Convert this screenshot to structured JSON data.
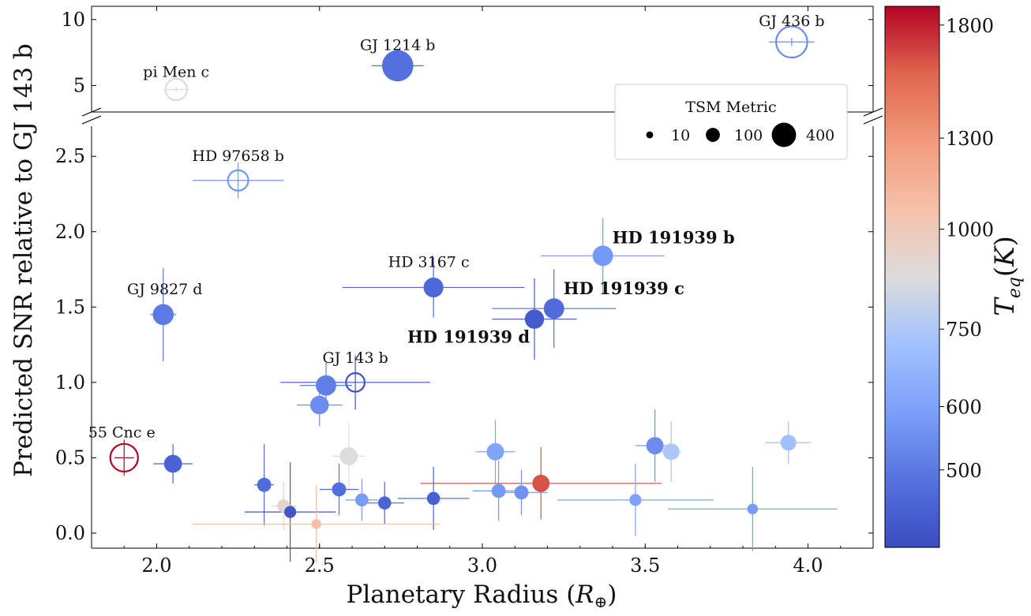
{
  "chart_data": {
    "type": "scatter",
    "xlabel": "Planetary Radius (R⊕)",
    "ylabel": "Predicted SNR relative to GJ 143 b",
    "xlim": [
      1.8,
      4.2
    ],
    "ylim_lower": [
      -0.1,
      2.7
    ],
    "ylim_upper": [
      3,
      11
    ],
    "x_ticks": [
      "2.0",
      "2.5",
      "3.0",
      "3.5",
      "4.0"
    ],
    "y_ticks_lower": [
      "0.0",
      "0.5",
      "1.0",
      "1.5",
      "2.0",
      "2.5"
    ],
    "y_ticks_upper": [
      "5",
      "10"
    ],
    "broken_y_axis": true,
    "color_scale": "coolwarm",
    "colorbar": {
      "label": "T_eq(K)",
      "min": 400,
      "max": 1900,
      "ticks": [
        "500",
        "600",
        "750",
        "1000",
        "1300",
        "1800"
      ]
    },
    "legend": {
      "title": "TSM Metric",
      "placement": "upper-right",
      "entries": [
        {
          "label": "10",
          "tsm": 10
        },
        {
          "label": "100",
          "tsm": 100
        },
        {
          "label": "400",
          "tsm": 400
        }
      ]
    },
    "points": [
      {
        "label": "GJ 436 b",
        "x": 3.95,
        "y": 8.3,
        "xerr": 0.07,
        "yerr": 0.3,
        "teq": 690,
        "tsm": 400,
        "hollow": true,
        "panel": "upper"
      },
      {
        "label": "GJ 1214 b",
        "x": 2.74,
        "y": 6.5,
        "xerr": 0.08,
        "yerr": 0.3,
        "teq": 580,
        "tsm": 400,
        "hollow": false,
        "panel": "upper"
      },
      {
        "label": "pi Men c",
        "x": 2.06,
        "y": 4.7,
        "xerr": 0.04,
        "yerr": 0.2,
        "teq": 1150,
        "tsm": 160,
        "hollow": true,
        "panel": "upper"
      },
      {
        "label": "HD 97658 b",
        "x": 2.25,
        "y": 2.34,
        "xerr": 0.14,
        "yerr": 0.12,
        "teq": 740,
        "tsm": 140,
        "hollow": true,
        "bold": false
      },
      {
        "label": "HD 191939 b",
        "x": 3.37,
        "y": 1.84,
        "xerr": 0.19,
        "yerr": 0.25,
        "teq": 750,
        "tsm": 140,
        "hollow": false,
        "bold": true
      },
      {
        "label": "HD 3167 c",
        "x": 2.85,
        "y": 1.63,
        "xerr": 0.28,
        "yerr": 0.2,
        "teq": 540,
        "tsm": 130,
        "hollow": false,
        "bold": false
      },
      {
        "label": "HD 191939 c",
        "x": 3.22,
        "y": 1.49,
        "xerr": 0.19,
        "yerr": 0.26,
        "teq": 560,
        "tsm": 140,
        "hollow": false,
        "bold": true
      },
      {
        "label": "GJ 9827 d",
        "x": 2.02,
        "y": 1.45,
        "xerr": 0.04,
        "yerr": 0.31,
        "teq": 620,
        "tsm": 150,
        "hollow": false,
        "bold": false
      },
      {
        "label": "HD 191939 d",
        "x": 3.16,
        "y": 1.42,
        "xerr": 0.13,
        "yerr": 0.27,
        "teq": 470,
        "tsm": 120,
        "hollow": false,
        "bold": true
      },
      {
        "label": "GJ 143 b",
        "x": 2.61,
        "y": 1.0,
        "xerr": 0.23,
        "yerr": 0.18,
        "teq": 430,
        "tsm": 110,
        "hollow": true,
        "bold": false
      },
      {
        "label": "",
        "x": 2.52,
        "y": 0.98,
        "xerr": 0.08,
        "yerr": 0.15,
        "teq": 640,
        "tsm": 140,
        "hollow": false
      },
      {
        "label": "",
        "x": 2.5,
        "y": 0.85,
        "xerr": 0.07,
        "yerr": 0.14,
        "teq": 700,
        "tsm": 110,
        "hollow": false
      },
      {
        "label": "55 Cnc e",
        "x": 1.9,
        "y": 0.5,
        "xerr": 0.03,
        "yerr": 0.12,
        "teq": 1900,
        "tsm": 300,
        "hollow": true,
        "bold": false
      },
      {
        "label": "",
        "x": 2.05,
        "y": 0.46,
        "xerr": 0.06,
        "yerr": 0.13,
        "teq": 510,
        "tsm": 100,
        "hollow": false
      },
      {
        "label": "",
        "x": 2.59,
        "y": 0.51,
        "xerr": 0.05,
        "yerr": 0.22,
        "teq": 1150,
        "tsm": 100,
        "hollow": false
      },
      {
        "label": "",
        "x": 3.04,
        "y": 0.54,
        "xerr": 0.06,
        "yerr": 0.21,
        "teq": 800,
        "tsm": 90,
        "hollow": false
      },
      {
        "label": "",
        "x": 3.53,
        "y": 0.58,
        "xerr": 0.06,
        "yerr": 0.24,
        "teq": 700,
        "tsm": 90,
        "hollow": false
      },
      {
        "label": "",
        "x": 3.58,
        "y": 0.54,
        "xerr": 0.03,
        "yerr": 0.2,
        "teq": 1000,
        "tsm": 80,
        "hollow": false
      },
      {
        "label": "",
        "x": 3.94,
        "y": 0.6,
        "xerr": 0.07,
        "yerr": 0.14,
        "teq": 950,
        "tsm": 70,
        "hollow": false
      },
      {
        "label": "",
        "x": 3.18,
        "y": 0.33,
        "xerr": 0.37,
        "yerr": 0.24,
        "teq": 1750,
        "tsm": 90,
        "hollow": false
      },
      {
        "label": "",
        "x": 2.33,
        "y": 0.32,
        "xerr": 0.03,
        "yerr": 0.27,
        "teq": 560,
        "tsm": 50,
        "hollow": false
      },
      {
        "label": "",
        "x": 2.56,
        "y": 0.29,
        "xerr": 0.06,
        "yerr": 0.17,
        "teq": 570,
        "tsm": 50,
        "hollow": false
      },
      {
        "label": "",
        "x": 3.05,
        "y": 0.28,
        "xerr": 0.08,
        "yerr": 0.2,
        "teq": 750,
        "tsm": 50,
        "hollow": false
      },
      {
        "label": "",
        "x": 3.12,
        "y": 0.27,
        "xerr": 0.08,
        "yerr": 0.15,
        "teq": 720,
        "tsm": 50,
        "hollow": false
      },
      {
        "label": "",
        "x": 2.85,
        "y": 0.23,
        "xerr": 0.11,
        "yerr": 0.21,
        "teq": 500,
        "tsm": 40,
        "hollow": false
      },
      {
        "label": "",
        "x": 2.63,
        "y": 0.22,
        "xerr": 0.05,
        "yerr": 0.14,
        "teq": 760,
        "tsm": 40,
        "hollow": false
      },
      {
        "label": "",
        "x": 3.47,
        "y": 0.22,
        "xerr": 0.24,
        "yerr": 0.24,
        "teq": 790,
        "tsm": 30,
        "hollow": false
      },
      {
        "label": "",
        "x": 2.7,
        "y": 0.2,
        "xerr": 0.06,
        "yerr": 0.14,
        "teq": 520,
        "tsm": 40,
        "hollow": false
      },
      {
        "label": "",
        "x": 2.39,
        "y": 0.18,
        "xerr": 0.04,
        "yerr": 0.16,
        "teq": 1200,
        "tsm": 40,
        "hollow": false
      },
      {
        "label": "",
        "x": 3.83,
        "y": 0.16,
        "xerr": 0.26,
        "yerr": 0.28,
        "teq": 760,
        "tsm": 20,
        "hollow": false
      },
      {
        "label": "",
        "x": 2.41,
        "y": 0.14,
        "xerr": 0.14,
        "yerr": 0.33,
        "teq": 450,
        "tsm": 30,
        "hollow": false
      },
      {
        "label": "",
        "x": 2.49,
        "y": 0.06,
        "xerr": 0.38,
        "yerr": 0.26,
        "teq": 1350,
        "tsm": 15,
        "hollow": false
      }
    ]
  }
}
